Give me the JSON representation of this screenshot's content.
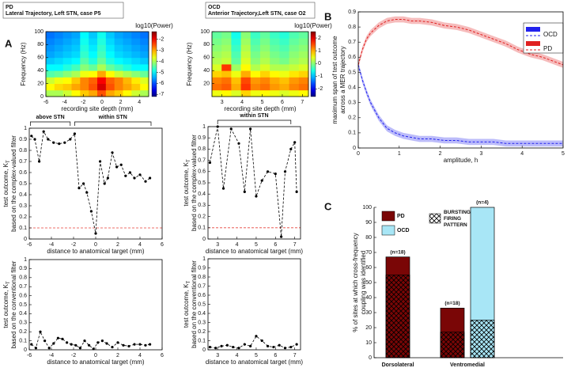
{
  "panel_labels": [
    "A",
    "B",
    "C"
  ],
  "chart_data": [
    {
      "type": "heatmap",
      "title": "PD",
      "subtitle": "Lateral Trajectory, Left STN, case P5",
      "xlabel": "recording site depth (mm)",
      "ylabel": "Frequency (Hz)",
      "colorbar_label": "log10(Power)",
      "xlim": [
        -6,
        5
      ],
      "xticks": [
        -6,
        -4,
        -2,
        0,
        2,
        4
      ],
      "ylim": [
        0,
        100
      ],
      "yticks": [
        0,
        20,
        40,
        60,
        80,
        100
      ],
      "clim": [
        -7.2,
        -1.3
      ],
      "cticks": [
        -2,
        -3,
        -4,
        -5,
        -6,
        -7
      ],
      "values": [
        [
          -4,
          -4,
          -3.8,
          -3.5,
          -3.2,
          -3,
          -2.5,
          -3,
          -3.2,
          -3.5,
          -3.8,
          -4
        ],
        [
          -3.5,
          -3.3,
          -3.2,
          -3,
          -2.8,
          -2.5,
          -1.8,
          -2.5,
          -2.8,
          -3,
          -3.2,
          -3.5
        ],
        [
          -3.8,
          -3.6,
          -3.5,
          -3.2,
          -2.8,
          -2.6,
          -2,
          -2.6,
          -2.8,
          -3.1,
          -3.4,
          -3.7
        ],
        [
          -4.5,
          -4.4,
          -4.2,
          -4,
          -3.6,
          -3.5,
          -3,
          -3.5,
          -3.8,
          -4,
          -4.2,
          -4.4
        ],
        [
          -5,
          -5,
          -4.8,
          -4.6,
          -4.2,
          -4.4,
          -4,
          -4.4,
          -4.6,
          -4.8,
          -5,
          -5
        ],
        [
          -5.3,
          -5.2,
          -5.1,
          -5,
          -4.5,
          -4.8,
          -4.4,
          -4.8,
          -5,
          -5.1,
          -5.2,
          -5.3
        ],
        [
          -5.5,
          -5.4,
          -5.3,
          -5.2,
          -4.7,
          -5,
          -4.6,
          -5,
          -5.2,
          -5.3,
          -5.4,
          -5.5
        ],
        [
          -5.6,
          -5.5,
          -5.4,
          -5.3,
          -4.8,
          -5.1,
          -4.7,
          -5.1,
          -5.3,
          -5.4,
          -5.5,
          -5.6
        ],
        [
          -5.7,
          -5.6,
          -5.5,
          -5.4,
          -4.9,
          -5.2,
          -4.8,
          -5.2,
          -5.4,
          -5.5,
          -5.6,
          -5.7
        ],
        [
          -5.8,
          -5.7,
          -5.6,
          -5.5,
          -5,
          -5.3,
          -4.9,
          -5.3,
          -5.5,
          -5.6,
          -5.7,
          -5.8
        ]
      ]
    },
    {
      "type": "heatmap",
      "title": "OCD",
      "subtitle": "Anterior Trajectory,Left STN, case O2",
      "xlabel": "recording site depth (mm)",
      "ylabel": "Frequency (Hz)",
      "colorbar_label": "log10(Power)",
      "xlim": [
        2.5,
        7.3
      ],
      "xticks": [
        3,
        4,
        5,
        6,
        7
      ],
      "ylim": [
        0,
        100
      ],
      "yticks": [
        20,
        40,
        60,
        80,
        100
      ],
      "clim": [
        -2.6,
        2.5
      ],
      "cticks": [
        2,
        1,
        0,
        -1,
        -2
      ],
      "values": [
        [
          0.5,
          0.6,
          0.4,
          0.8,
          0.5,
          0.6,
          0.5,
          0.4,
          0.5,
          0.6
        ],
        [
          1.3,
          1.4,
          1,
          1.6,
          1.2,
          1.3,
          1.1,
          1,
          1.2,
          1.3
        ],
        [
          1.2,
          1.3,
          0.9,
          1.5,
          1.1,
          1.2,
          1,
          0.9,
          1.1,
          1.2
        ],
        [
          0.8,
          0.9,
          0.5,
          1,
          0.6,
          0.8,
          0.6,
          0.5,
          0.7,
          0.8
        ],
        [
          0.4,
          1.6,
          0.1,
          0.6,
          0.2,
          0.4,
          0.2,
          0.2,
          0.3,
          0.4
        ],
        [
          0.2,
          0.3,
          -0.2,
          0.4,
          0,
          0.2,
          0,
          -0.1,
          0.1,
          0.2
        ],
        [
          0.1,
          0.2,
          -0.3,
          0.3,
          -0.1,
          0.1,
          -0.1,
          -0.2,
          0,
          0.1
        ],
        [
          0,
          0.1,
          -0.4,
          0.2,
          -0.2,
          0,
          -0.2,
          -0.3,
          -0.1,
          0
        ],
        [
          -0.1,
          0,
          -0.5,
          0.1,
          -0.3,
          -0.1,
          -0.3,
          -0.4,
          -0.2,
          -0.1
        ],
        [
          -0.2,
          -0.1,
          -0.6,
          0,
          -0.4,
          -0.2,
          -0.4,
          -0.5,
          -0.3,
          -0.2
        ]
      ]
    },
    {
      "type": "line",
      "xlabel": "distance to anatomical target (mm)",
      "ylabel": "test outcome, K",
      "ylabel_sub": "T",
      "ylabel2": "based on the complex-valued filter",
      "xlim": [
        -6,
        6
      ],
      "xticks": [
        -6,
        -4,
        -2,
        0,
        2,
        4,
        6
      ],
      "ylim": [
        0,
        1
      ],
      "yticks": [
        0,
        0.1,
        0.2,
        0.3,
        0.4,
        0.5,
        0.6,
        0.7,
        0.8,
        0.9,
        1
      ],
      "hline": {
        "value": 0.1,
        "color": "#e8403a"
      },
      "annotations": [
        {
          "text": "above STN",
          "range": [
            -5.9,
            -2.3
          ]
        },
        {
          "text": "within STN",
          "range": [
            -1.9,
            5
          ]
        }
      ],
      "x": [
        -5.8,
        -5.5,
        -5.1,
        -4.7,
        -4.3,
        -3.8,
        -3.3,
        -2.8,
        -2.3,
        -1.9,
        -1.5,
        -1.1,
        -0.8,
        -0.4,
        0,
        0.4,
        0.8,
        1.1,
        1.5,
        1.9,
        2.3,
        2.7,
        3.1,
        3.5,
        4,
        4.5,
        4.9
      ],
      "series": [
        {
          "color": "#000000",
          "values": [
            0.93,
            0.9,
            0.7,
            0.97,
            0.9,
            0.87,
            0.86,
            0.87,
            0.9,
            0.95,
            0.46,
            0.5,
            0.42,
            0.25,
            0.05,
            0.7,
            0.5,
            0.55,
            0.78,
            0.65,
            0.67,
            0.57,
            0.6,
            0.55,
            0.58,
            0.52,
            0.55
          ]
        }
      ]
    },
    {
      "type": "line",
      "xlabel": "distance to anatomical target (mm)",
      "ylabel": "test outcome, K",
      "ylabel_sub": "T",
      "ylabel2": "based on the complex-valued filter",
      "xlim": [
        2.5,
        7.3
      ],
      "xticks": [
        3,
        4,
        5,
        6,
        7
      ],
      "ylim": [
        0,
        1
      ],
      "yticks": [
        0,
        0.1,
        0.2,
        0.3,
        0.4,
        0.5,
        0.6,
        0.7,
        0.8,
        0.9,
        1
      ],
      "hline": {
        "value": 0.1,
        "color": "#e8403a"
      },
      "annotations": [
        {
          "text": "within STN",
          "range": [
            3,
            6.8
          ]
        }
      ],
      "x": [
        2.6,
        3,
        3.3,
        3.7,
        4.1,
        4.4,
        4.7,
        5,
        5.3,
        5.6,
        6,
        6.3,
        6.5,
        6.8,
        7,
        7.1
      ],
      "series": [
        {
          "color": "#000000",
          "values": [
            0.68,
            1,
            0.45,
            0.98,
            0.85,
            0.42,
            0.98,
            0.38,
            0.52,
            0.6,
            0.58,
            0.02,
            0.6,
            0.8,
            0.86,
            0.42
          ]
        }
      ]
    },
    {
      "type": "line",
      "xlabel": "distance to anatomical target (mm)",
      "ylabel": "test outcome, K",
      "ylabel_sub": "T",
      "ylabel2": "based on the conventional filter",
      "xlim": [
        -6,
        6
      ],
      "xticks": [
        -6,
        -4,
        -2,
        0,
        2,
        4,
        6
      ],
      "ylim": [
        0,
        1
      ],
      "yticks": [
        0,
        0.1,
        0.2,
        0.3,
        0.4,
        0.5,
        0.6,
        0.7,
        0.8,
        0.9,
        1
      ],
      "x": [
        -5.8,
        -5.4,
        -5,
        -4.6,
        -4.2,
        -3.8,
        -3.4,
        -3,
        -2.6,
        -2.2,
        -1.8,
        -1.4,
        -1,
        -0.6,
        -0.2,
        0.2,
        0.6,
        1,
        1.5,
        2,
        2.5,
        3,
        3.5,
        4,
        4.5,
        4.9
      ],
      "series": [
        {
          "color": "#000000",
          "values": [
            0.06,
            0.02,
            0.2,
            0.1,
            0.02,
            0.07,
            0.13,
            0.12,
            0.08,
            0.06,
            0.05,
            0.02,
            0.1,
            0.05,
            0.01,
            0.08,
            0.1,
            0.07,
            0.03,
            0.08,
            0.05,
            0.04,
            0.06,
            0.06,
            0.05,
            0.06
          ]
        }
      ]
    },
    {
      "type": "line",
      "xlabel": "distance to anatomical target (mm)",
      "ylabel": "test outcome, K",
      "ylabel_sub": "T",
      "ylabel2": "based on the conventional filter",
      "xlim": [
        2.5,
        7.3
      ],
      "xticks": [
        3,
        4,
        5,
        6,
        7
      ],
      "ylim": [
        0,
        1
      ],
      "yticks": [
        0,
        0.1,
        0.2,
        0.3,
        0.4,
        0.5,
        0.6,
        0.7,
        0.8,
        0.9,
        1
      ],
      "x": [
        2.6,
        2.9,
        3.2,
        3.5,
        3.8,
        4.1,
        4.4,
        4.7,
        5,
        5.3,
        5.6,
        5.9,
        6.2,
        6.5,
        6.8,
        7.1
      ],
      "series": [
        {
          "color": "#000000",
          "values": [
            0.03,
            0.02,
            0.04,
            0.05,
            0.03,
            0.02,
            0.06,
            0.04,
            0.15,
            0.1,
            0.04,
            0.03,
            0.05,
            0.02,
            0.03,
            0.06
          ]
        }
      ]
    },
    {
      "type": "band",
      "xlabel": "amplitude, h",
      "ylabel": "maximum span of test outcome",
      "ylabel2": "across a MER trajectory",
      "xlim": [
        0,
        5
      ],
      "xticks": [
        0,
        1,
        2,
        3,
        4,
        5
      ],
      "ylim": [
        0,
        0.9
      ],
      "yticks": [
        0,
        0.1,
        0.2,
        0.3,
        0.4,
        0.5,
        0.6,
        0.7,
        0.8,
        0.9
      ],
      "legend": "upper right",
      "x": [
        0,
        0.1,
        0.2,
        0.3,
        0.5,
        0.7,
        0.9,
        1.1,
        1.3,
        1.5,
        1.8,
        2.1,
        2.4,
        2.7,
        3,
        3.3,
        3.6,
        3.9,
        4.2,
        4.5,
        4.8,
        5
      ],
      "series": [
        {
          "name": "OCD",
          "color": "#2222ee",
          "error": 0.02,
          "values": [
            0.55,
            0.45,
            0.37,
            0.3,
            0.2,
            0.13,
            0.1,
            0.08,
            0.07,
            0.06,
            0.06,
            0.05,
            0.05,
            0.04,
            0.04,
            0.04,
            0.03,
            0.03,
            0.03,
            0.03,
            0.03,
            0.03
          ]
        },
        {
          "name": "PD",
          "color": "#e02020",
          "error": 0.02,
          "values": [
            0.55,
            0.65,
            0.72,
            0.76,
            0.81,
            0.84,
            0.85,
            0.85,
            0.84,
            0.84,
            0.83,
            0.81,
            0.8,
            0.78,
            0.75,
            0.72,
            0.69,
            0.65,
            0.62,
            0.6,
            0.57,
            0.55
          ]
        }
      ]
    },
    {
      "type": "bar",
      "ylabel": "% of sites at which cross-frequency",
      "ylabel2": "coupling was identified",
      "ylim": [
        0,
        100
      ],
      "yticks": [
        0,
        10,
        20,
        30,
        40,
        50,
        60,
        70,
        80,
        90,
        100
      ],
      "hatch_label": "BURSTING FIRING PATTERN",
      "categories": [
        "Dorsolateral STN",
        "Ventromedial STN"
      ],
      "series": [
        {
          "name": "PD",
          "color": "#7a0606",
          "values": [
            67,
            33
          ],
          "hatched": [
            55,
            17
          ],
          "notes": [
            "(n=18)",
            "(n=18)"
          ]
        },
        {
          "name": "OCD",
          "color": "#a8e6f6",
          "values": [
            null,
            100
          ],
          "hatched": [
            null,
            25
          ],
          "notes": [
            null,
            "(n=4)"
          ]
        }
      ]
    }
  ]
}
